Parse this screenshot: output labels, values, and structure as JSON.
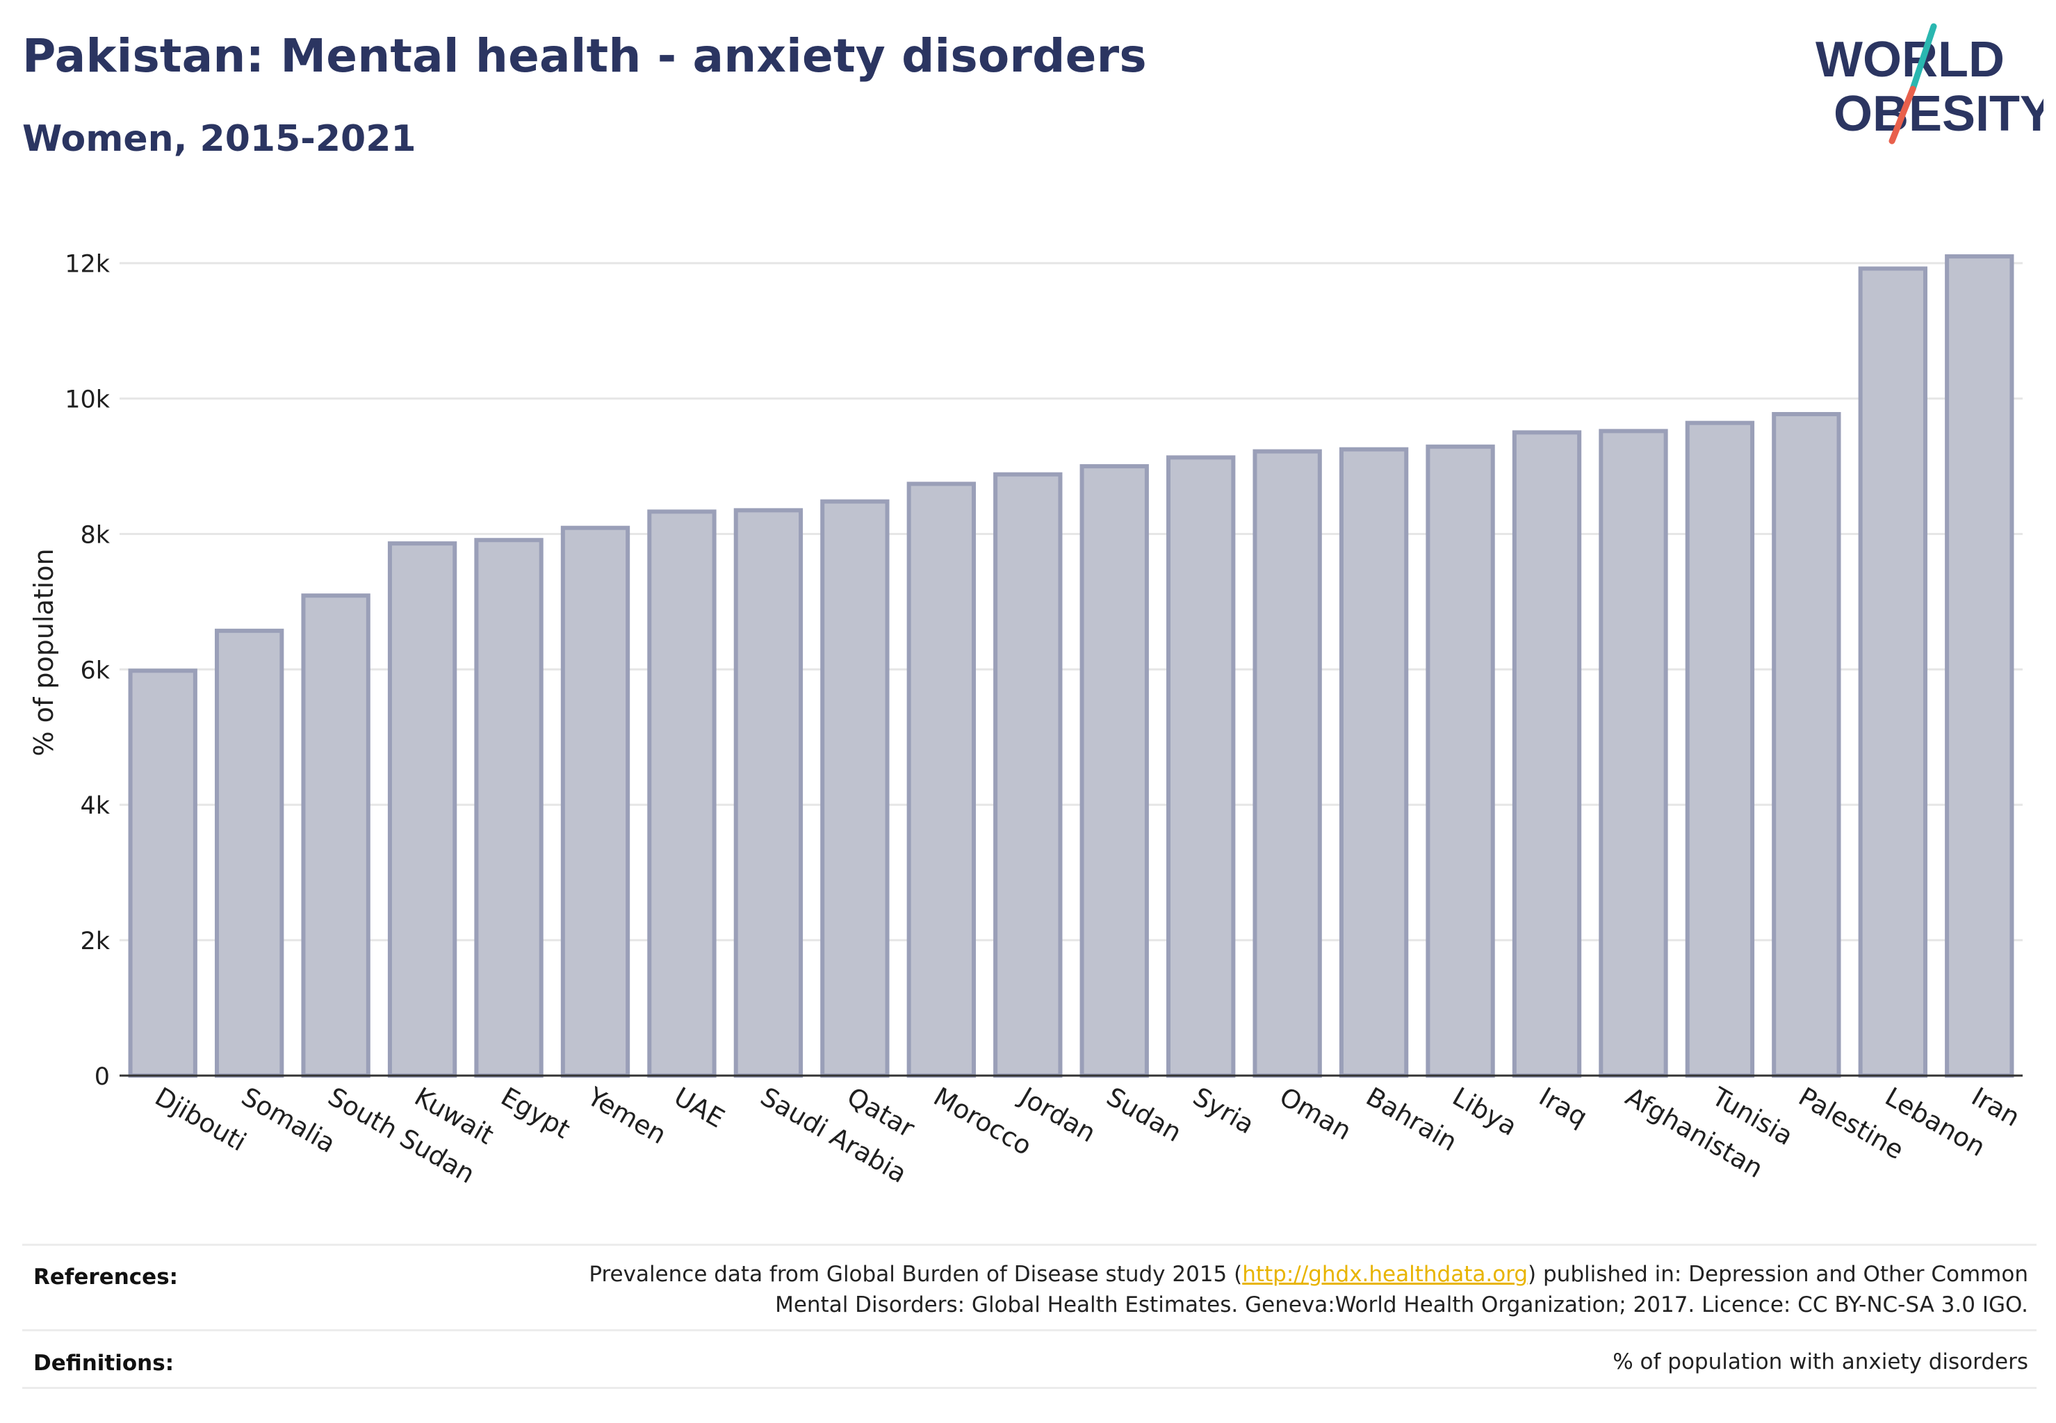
{
  "header": {
    "title": "Pakistan: Mental health - anxiety disorders",
    "subtitle": "Women, 2015-2021"
  },
  "logo": {
    "line1": "WORLD",
    "line2": "OBESITY",
    "text_color": "#2b3561",
    "slash_colors": [
      "#2ab7b0",
      "#e8604c"
    ]
  },
  "chart_data": {
    "type": "bar",
    "categories": [
      "Djibouti",
      "Somalia",
      "South Sudan",
      "Kuwait",
      "Egypt",
      "Yemen",
      "UAE",
      "Saudi Arabia",
      "Qatar",
      "Morocco",
      "Jordan",
      "Sudan",
      "Syria",
      "Oman",
      "Bahrain",
      "Libya",
      "Iraq",
      "Afghanistan",
      "Tunisia",
      "Palestine",
      "Lebanon",
      "Iran"
    ],
    "values": [
      5980,
      6570,
      7090,
      7860,
      7910,
      8090,
      8330,
      8350,
      8480,
      8740,
      8880,
      9000,
      9130,
      9220,
      9250,
      9290,
      9500,
      9520,
      9640,
      9770,
      11920,
      12100
    ],
    "ylabel": "% of population",
    "xlabel": "",
    "ylim": [
      0,
      12500
    ],
    "yticks": [
      0,
      2000,
      4000,
      6000,
      8000,
      10000,
      12000
    ],
    "ytick_labels": [
      "0",
      "2k",
      "4k",
      "6k",
      "8k",
      "10k",
      "12k"
    ],
    "grid": true,
    "bar_fill": "#bfc2cf",
    "bar_stroke": "#9a9fb8"
  },
  "footer": {
    "references_label": "References:",
    "references_line1_pre": "Prevalence data from Global Burden of Disease study 2015 (",
    "references_link": "http://ghdx.healthdata.org",
    "references_line1_post": ") published in: Depression and Other Common",
    "references_line2": "Mental Disorders: Global Health Estimates. Geneva:World Health Organization; 2017. Licence: CC BY-NC-SA 3.0 IGO.",
    "definitions_label": "Definitions:",
    "definitions_text": "% of population with anxiety disorders"
  }
}
